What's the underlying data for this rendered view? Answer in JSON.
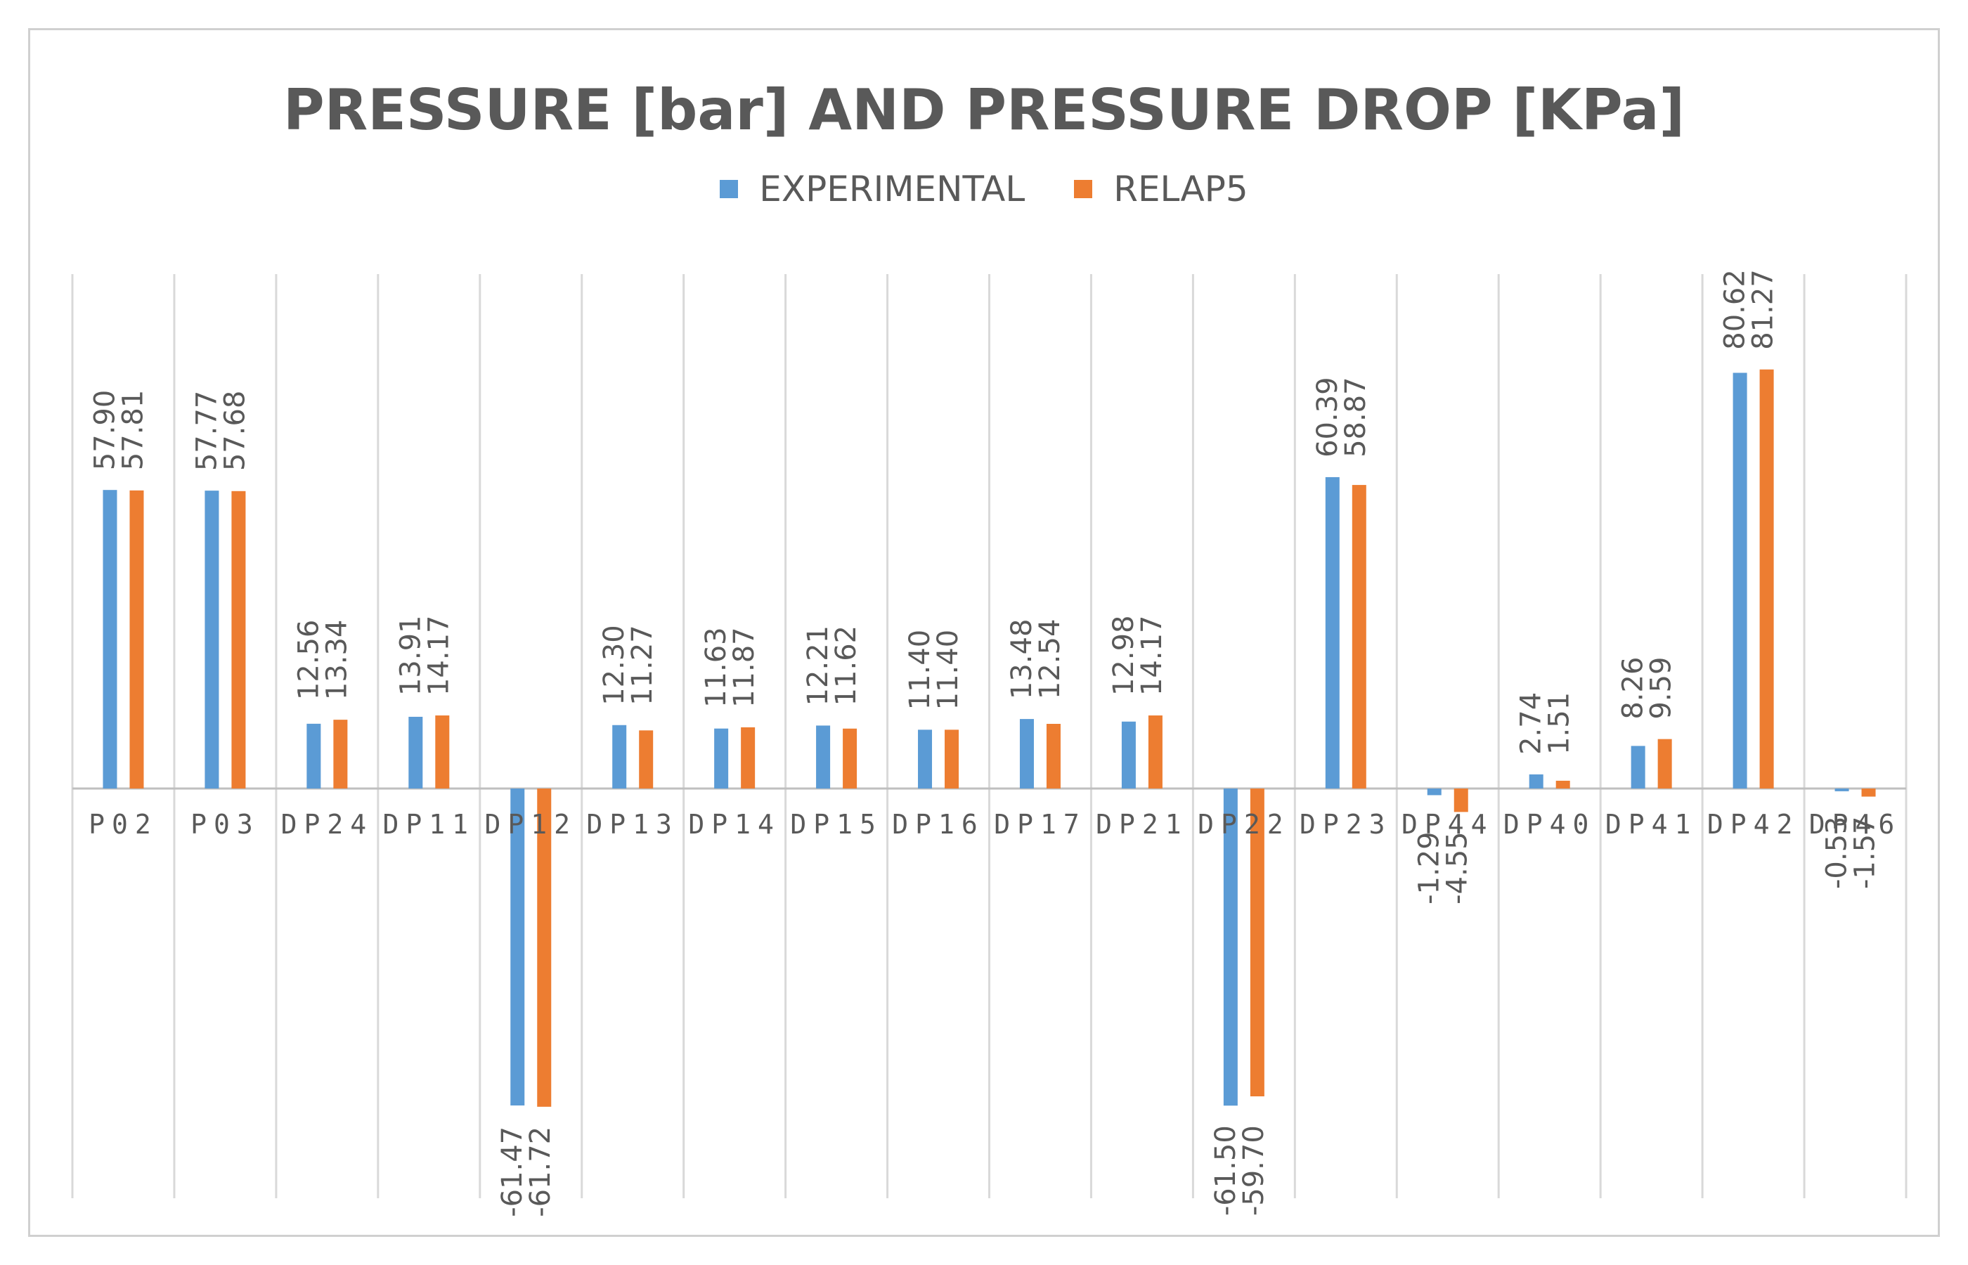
{
  "chart_data": {
    "type": "bar",
    "title": "PRESSURE [bar] AND PRESSURE DROP [KPa]",
    "xlabel": "",
    "ylabel": "",
    "ylim": [
      -104,
      140
    ],
    "grid": "vertical category separators",
    "legend_position": "top-center",
    "categories": [
      "P02",
      "P03",
      "DP24",
      "DP11",
      "DP12",
      "DP13",
      "DP14",
      "DP15",
      "DP16",
      "DP17",
      "DP21",
      "DP22",
      "DP23",
      "DP44",
      "DP40",
      "DP41",
      "DP42",
      "DP46"
    ],
    "series": [
      {
        "name": "EXPERIMENTAL",
        "color": "#5B9BD5",
        "values": [
          57.9,
          57.77,
          12.56,
          13.91,
          -61.47,
          12.3,
          11.63,
          12.21,
          11.4,
          13.48,
          12.98,
          -61.5,
          60.39,
          -1.29,
          2.74,
          8.26,
          80.62,
          -0.53
        ],
        "labels": [
          "57.90",
          "57.77",
          "12.56",
          "13.91",
          "-61.47",
          "12.30",
          "11.63",
          "12.21",
          "11.40",
          "13.48",
          "12.98",
          "-61.50",
          "60.39",
          "-1.29",
          "2.74",
          "8.26",
          "80.62",
          "-0.53"
        ]
      },
      {
        "name": "RELAP5",
        "color": "#ED7D31",
        "values": [
          57.81,
          57.68,
          13.34,
          14.17,
          -61.72,
          11.27,
          11.87,
          11.62,
          11.4,
          12.54,
          14.17,
          -59.7,
          58.87,
          -4.55,
          1.51,
          9.59,
          81.27,
          -1.57
        ],
        "labels": [
          "57.81",
          "57.68",
          "13.34",
          "14.17",
          "-61.72",
          "11.27",
          "11.87",
          "11.62",
          "11.40",
          "12.54",
          "14.17",
          "-59.70",
          "58.87",
          "-4.55",
          "1.51",
          "9.59",
          "81.27",
          "-1.57"
        ]
      }
    ]
  }
}
